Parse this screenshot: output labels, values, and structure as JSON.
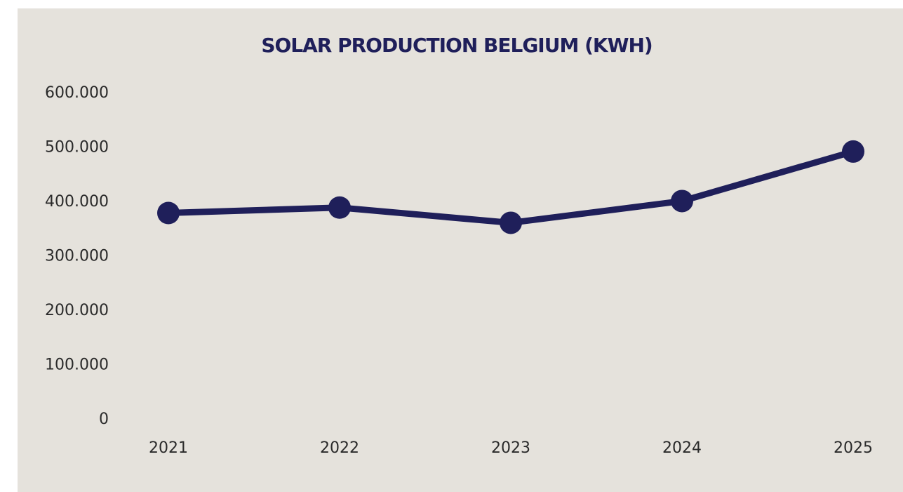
{
  "chart_data": {
    "type": "line",
    "title": "SOLAR PRODUCTION BELGIUM (KWH)",
    "categories": [
      "2021",
      "2022",
      "2023",
      "2024",
      "2025"
    ],
    "values": [
      380000,
      390000,
      362000,
      402000,
      493000
    ],
    "color": "#1f1f5a",
    "ylim": [
      0,
      600000
    ],
    "yticks": [
      0,
      {
        "value": 100000,
        "label": "100.000"
      },
      {
        "value": 200000,
        "label": "200.000"
      },
      {
        "value": 300000,
        "label": "300.000"
      },
      {
        "value": 400000,
        "label": "400.000"
      },
      {
        "value": 500000,
        "label": "500.000"
      },
      {
        "value": 600000,
        "label": "600.000"
      }
    ],
    "grid": false
  }
}
